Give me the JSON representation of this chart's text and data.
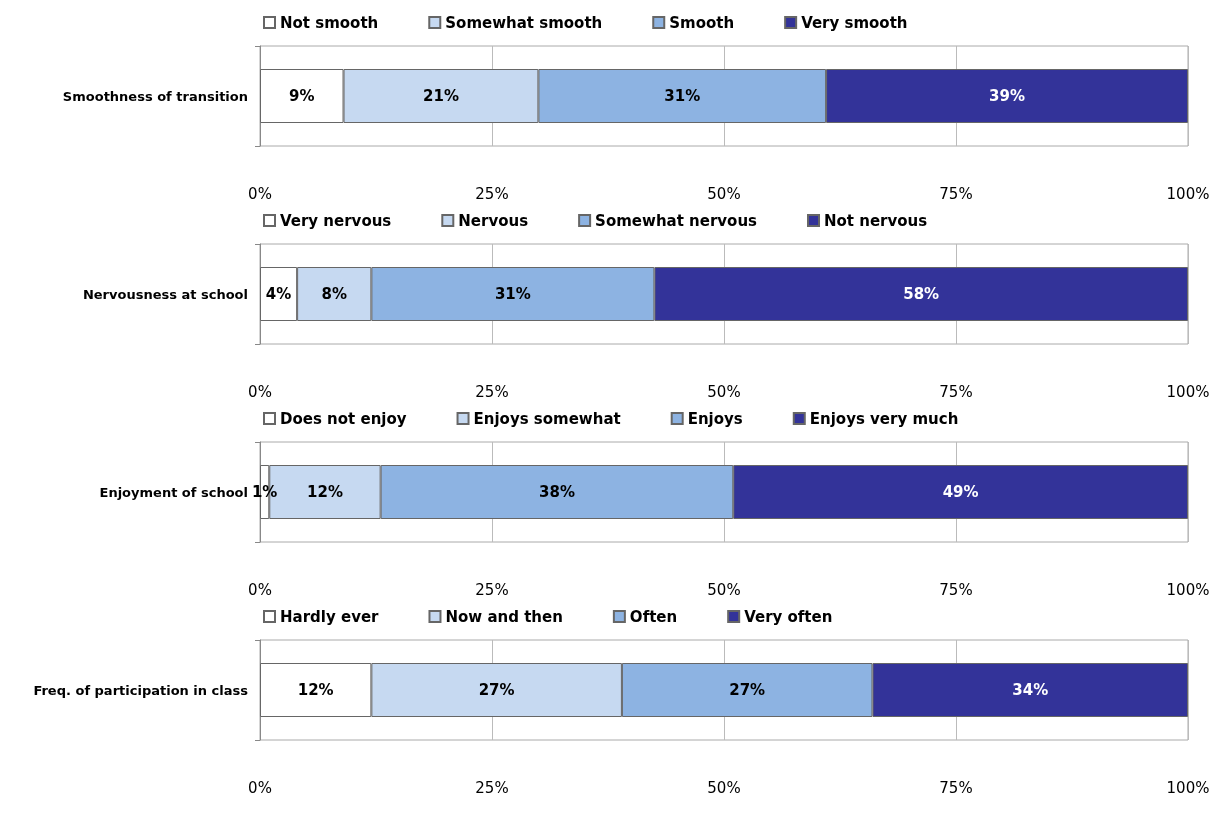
{
  "chart_data": [
    {
      "type": "bar",
      "orientation": "horizontal",
      "stacked": true,
      "categories": [
        "Smoothness of transition"
      ],
      "legend": "top",
      "grid": "x",
      "xlim": [
        0,
        100
      ],
      "xticks": [
        {
          "value": 0,
          "label": "0%"
        },
        {
          "value": 25,
          "label": "25%"
        },
        {
          "value": 50,
          "label": "50%"
        },
        {
          "value": 75,
          "label": "75%"
        },
        {
          "value": 100,
          "label": "100%"
        }
      ],
      "series": [
        {
          "name": "Not smooth",
          "color": "#ffffff",
          "values": [
            9
          ],
          "value_labels": [
            "9%"
          ]
        },
        {
          "name": "Somewhat smooth",
          "color": "#c6d9f1",
          "values": [
            21
          ],
          "value_labels": [
            "21%"
          ]
        },
        {
          "name": "Smooth",
          "color": "#8db3e2",
          "values": [
            31
          ],
          "value_labels": [
            "31%"
          ]
        },
        {
          "name": "Very smooth",
          "color": "#333399",
          "values": [
            39
          ],
          "value_labels": [
            "39%"
          ]
        }
      ]
    },
    {
      "type": "bar",
      "orientation": "horizontal",
      "stacked": true,
      "categories": [
        "Nervousness at school"
      ],
      "legend": "top",
      "grid": "x",
      "xlim": [
        0,
        100
      ],
      "xticks": [
        {
          "value": 0,
          "label": "0%"
        },
        {
          "value": 25,
          "label": "25%"
        },
        {
          "value": 50,
          "label": "50%"
        },
        {
          "value": 75,
          "label": "75%"
        },
        {
          "value": 100,
          "label": "100%"
        }
      ],
      "series": [
        {
          "name": "Very nervous",
          "color": "#ffffff",
          "values": [
            4
          ],
          "value_labels": [
            "4%"
          ]
        },
        {
          "name": "Nervous",
          "color": "#c6d9f1",
          "values": [
            8
          ],
          "value_labels": [
            "8%"
          ]
        },
        {
          "name": "Somewhat nervous",
          "color": "#8db3e2",
          "values": [
            30.5
          ],
          "value_labels": [
            "31%"
          ]
        },
        {
          "name": "Not nervous",
          "color": "#333399",
          "values": [
            57.5
          ],
          "value_labels": [
            "58%"
          ]
        }
      ]
    },
    {
      "type": "bar",
      "orientation": "horizontal",
      "stacked": true,
      "categories": [
        "Enjoyment of school"
      ],
      "legend": "top",
      "grid": "x",
      "xlim": [
        0,
        100
      ],
      "xticks": [
        {
          "value": 0,
          "label": "0%"
        },
        {
          "value": 25,
          "label": "25%"
        },
        {
          "value": 50,
          "label": "50%"
        },
        {
          "value": 75,
          "label": "75%"
        },
        {
          "value": 100,
          "label": "100%"
        }
      ],
      "series": [
        {
          "name": "Does not enjoy",
          "color": "#ffffff",
          "values": [
            1
          ],
          "value_labels": [
            "1%"
          ]
        },
        {
          "name": "Enjoys somewhat",
          "color": "#c6d9f1",
          "values": [
            12
          ],
          "value_labels": [
            "12%"
          ]
        },
        {
          "name": "Enjoys",
          "color": "#8db3e2",
          "values": [
            38
          ],
          "value_labels": [
            "38%"
          ]
        },
        {
          "name": "Enjoys very much",
          "color": "#333399",
          "values": [
            49
          ],
          "value_labels": [
            "49%"
          ]
        }
      ]
    },
    {
      "type": "bar",
      "orientation": "horizontal",
      "stacked": true,
      "categories": [
        "Freq. of participation in class"
      ],
      "legend": "top",
      "grid": "x",
      "xlim": [
        0,
        100
      ],
      "xticks": [
        {
          "value": 0,
          "label": "0%"
        },
        {
          "value": 25,
          "label": "25%"
        },
        {
          "value": 50,
          "label": "50%"
        },
        {
          "value": 75,
          "label": "75%"
        },
        {
          "value": 100,
          "label": "100%"
        }
      ],
      "series": [
        {
          "name": "Hardly ever",
          "color": "#ffffff",
          "values": [
            12
          ],
          "value_labels": [
            "12%"
          ]
        },
        {
          "name": "Now and then",
          "color": "#c6d9f1",
          "values": [
            27
          ],
          "value_labels": [
            "27%"
          ]
        },
        {
          "name": "Often",
          "color": "#8db3e2",
          "values": [
            27
          ],
          "value_labels": [
            "27%"
          ]
        },
        {
          "name": "Very often",
          "color": "#333399",
          "values": [
            34
          ],
          "value_labels": [
            "34%"
          ]
        }
      ]
    }
  ]
}
